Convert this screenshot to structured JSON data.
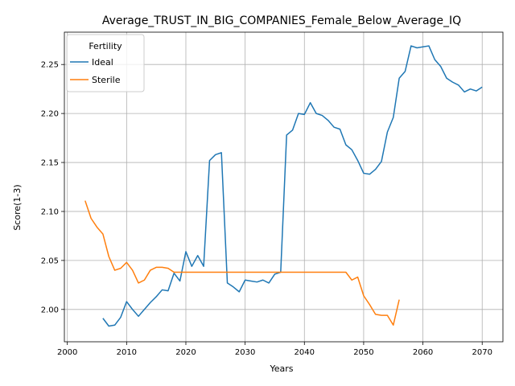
{
  "chart_data": {
    "type": "line",
    "title": "Average_TRUST_IN_BIG_COMPANIES_Female_Below_Average_IQ",
    "xlabel": "Years",
    "ylabel": "Score(1-3)",
    "xlim": [
      1999.5,
      2073.5
    ],
    "ylim": [
      1.967,
      2.283
    ],
    "xticks": [
      2000,
      2010,
      2020,
      2030,
      2040,
      2050,
      2060,
      2070
    ],
    "yticks": [
      2.0,
      2.05,
      2.1,
      2.15,
      2.2,
      2.25
    ],
    "xtick_labels": [
      "2000",
      "2010",
      "2020",
      "2030",
      "2040",
      "2050",
      "2060",
      "2070"
    ],
    "ytick_labels": [
      "2.00",
      "2.05",
      "2.10",
      "2.15",
      "2.20",
      "2.25"
    ],
    "grid": true,
    "legend": {
      "title": "Fertility",
      "placement": "top-left"
    },
    "series": [
      {
        "name": "Ideal",
        "color": "#1f77b4",
        "x": [
          2006,
          2007,
          2008,
          2009,
          2010,
          2011,
          2012,
          2013,
          2014,
          2015,
          2016,
          2017,
          2018,
          2019,
          2020,
          2021,
          2022,
          2023,
          2024,
          2025,
          2026,
          2027,
          2028,
          2029,
          2030,
          2031,
          2032,
          2033,
          2034,
          2035,
          2036,
          2037,
          2038,
          2039,
          2040,
          2041,
          2042,
          2043,
          2044,
          2045,
          2046,
          2047,
          2048,
          2049,
          2050,
          2051,
          2052,
          2053,
          2054,
          2055,
          2056,
          2057,
          2058,
          2059,
          2060,
          2061,
          2062,
          2063,
          2064,
          2065,
          2066,
          2067,
          2068,
          2069,
          2070
        ],
        "y": [
          1.991,
          1.983,
          1.984,
          1.992,
          2.008,
          2.0,
          1.993,
          2.0,
          2.007,
          2.013,
          2.02,
          2.019,
          2.037,
          2.029,
          2.059,
          2.044,
          2.055,
          2.044,
          2.152,
          2.158,
          2.16,
          2.027,
          2.023,
          2.018,
          2.03,
          2.029,
          2.028,
          2.03,
          2.027,
          2.036,
          2.038,
          2.178,
          2.183,
          2.2,
          2.199,
          2.211,
          2.2,
          2.198,
          2.193,
          2.186,
          2.184,
          2.168,
          2.163,
          2.152,
          2.139,
          2.138,
          2.143,
          2.151,
          2.181,
          2.196,
          2.236,
          2.243,
          2.269,
          2.267,
          2.268,
          2.269,
          2.255,
          2.248,
          2.236,
          2.232,
          2.229,
          2.222,
          2.225,
          2.223,
          2.227
        ]
      },
      {
        "name": "Sterile",
        "color": "#ff7f0e",
        "x": [
          2003,
          2004,
          2005,
          2006,
          2007,
          2008,
          2009,
          2010,
          2011,
          2012,
          2013,
          2014,
          2015,
          2016,
          2017,
          2018,
          2019,
          2020,
          2021,
          2022,
          2023,
          2024,
          2025,
          2026,
          2027,
          2028,
          2029,
          2030,
          2031,
          2032,
          2033,
          2034,
          2035,
          2036,
          2037,
          2038,
          2039,
          2040,
          2041,
          2042,
          2043,
          2044,
          2045,
          2046,
          2047,
          2048,
          2049,
          2050,
          2051,
          2052,
          2053,
          2054,
          2055,
          2056
        ],
        "y": [
          2.111,
          2.093,
          2.084,
          2.077,
          2.054,
          2.04,
          2.042,
          2.048,
          2.04,
          2.027,
          2.03,
          2.04,
          2.043,
          2.043,
          2.042,
          2.038,
          2.038,
          2.038,
          2.038,
          2.038,
          2.038,
          2.038,
          2.038,
          2.038,
          2.038,
          2.038,
          2.038,
          2.038,
          2.038,
          2.038,
          2.038,
          2.038,
          2.038,
          2.038,
          2.038,
          2.038,
          2.038,
          2.038,
          2.038,
          2.038,
          2.038,
          2.038,
          2.038,
          2.038,
          2.038,
          2.03,
          2.033,
          2.014,
          2.005,
          1.995,
          1.994,
          1.994,
          1.984,
          2.01
        ]
      }
    ]
  }
}
